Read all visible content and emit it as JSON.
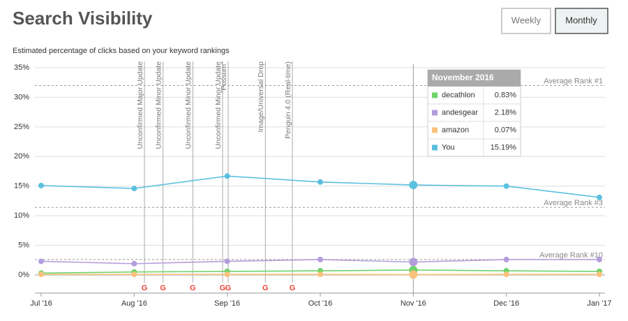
{
  "header": {
    "title": "Search Visibility",
    "buttons": [
      "Weekly",
      "Monthly"
    ]
  },
  "chart_data": {
    "type": "line",
    "subtitle": "Estimated percentage of clicks based on your keyword rankings",
    "categories": [
      "Jul '16",
      "Aug '16",
      "Sep '16",
      "Oct '16",
      "Nov '16",
      "Dec '16",
      "Jan '17"
    ],
    "series": [
      {
        "name": "decathlon",
        "color": "#6fd36a",
        "values": [
          0.3,
          0.5,
          0.6,
          0.7,
          0.83,
          0.7,
          0.6
        ],
        "value_labels": [
          null,
          null,
          null,
          null,
          "0.83%",
          null,
          null
        ]
      },
      {
        "name": "andesgear",
        "color": "#b39ddb",
        "values": [
          2.3,
          1.9,
          2.3,
          2.6,
          2.18,
          2.6,
          2.6
        ],
        "value_labels": [
          null,
          null,
          null,
          null,
          "2.18%",
          null,
          null
        ]
      },
      {
        "name": "amazon",
        "color": "#f9c27d",
        "values": [
          0.1,
          0.1,
          0.1,
          0.1,
          0.07,
          0.1,
          0.1
        ],
        "value_labels": [
          null,
          null,
          null,
          null,
          "0.07%",
          null,
          null
        ]
      },
      {
        "name": "You",
        "color": "#5bc0de",
        "values": [
          15.1,
          14.6,
          16.7,
          15.7,
          15.19,
          15.0,
          13.1
        ],
        "value_labels": [
          null,
          null,
          null,
          null,
          "15.19%",
          null,
          null
        ]
      }
    ],
    "ylim": [
      0,
      35
    ],
    "yticks": [
      {
        "value": 0,
        "label": "0%"
      },
      {
        "value": 5,
        "label": "5%"
      },
      {
        "value": 10,
        "label": "10%"
      },
      {
        "value": 15,
        "label": "15%"
      },
      {
        "value": 20,
        "label": "20%"
      },
      {
        "value": 25,
        "label": "25%"
      },
      {
        "value": 30,
        "label": "30%"
      },
      {
        "value": 35,
        "label": "35%"
      }
    ],
    "grid": true,
    "reference_lines": [
      {
        "label": "Average Rank #1",
        "value": 32
      },
      {
        "label": "Average Rank #3",
        "value": 11.4
      },
      {
        "label": "Average Rank #10",
        "value": 2.6
      }
    ],
    "annotations": [
      {
        "label": "Unconfirmed Major Update",
        "x": 1.11
      },
      {
        "label": "Unconfirmed Minor Update",
        "x": 1.31
      },
      {
        "label": "Unconfirmed Minor Update",
        "x": 1.63
      },
      {
        "label": "Unconfirmed Minor Update",
        "x": 1.95
      },
      {
        "label": "\"Possum\"",
        "x": 2.01
      },
      {
        "label": "Image/Universal Drop",
        "x": 2.41
      },
      {
        "label": "Penguin 4.0 (Real-time)",
        "x": 2.7
      }
    ],
    "tooltip": {
      "title": "November 2016"
    }
  }
}
